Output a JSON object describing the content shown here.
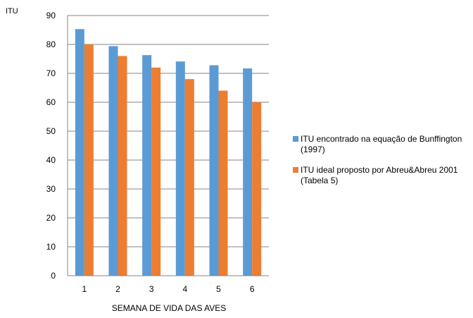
{
  "chart_data": {
    "type": "bar",
    "title": "",
    "ylabel": "ITU",
    "xlabel": "SEMANA DE VIDA DAS AVES",
    "categories": [
      "1",
      "2",
      "3",
      "4",
      "5",
      "6"
    ],
    "ylim": [
      0,
      90
    ],
    "yticks": [
      0,
      10,
      20,
      30,
      40,
      50,
      60,
      70,
      80,
      90
    ],
    "grid": true,
    "legend_position": "right",
    "series": [
      {
        "name": "ITU  encontrado na equação de Bunffington (1997)",
        "color": "#5b9bd5",
        "values": [
          85.3,
          79.4,
          76.3,
          74.1,
          72.8,
          71.7
        ]
      },
      {
        "name": "ITU ideal proposto por Abreu&Abreu 2001 (Tabela 5)",
        "color": "#ed7d31",
        "values": [
          80,
          76,
          72,
          68,
          64,
          60
        ]
      }
    ]
  }
}
